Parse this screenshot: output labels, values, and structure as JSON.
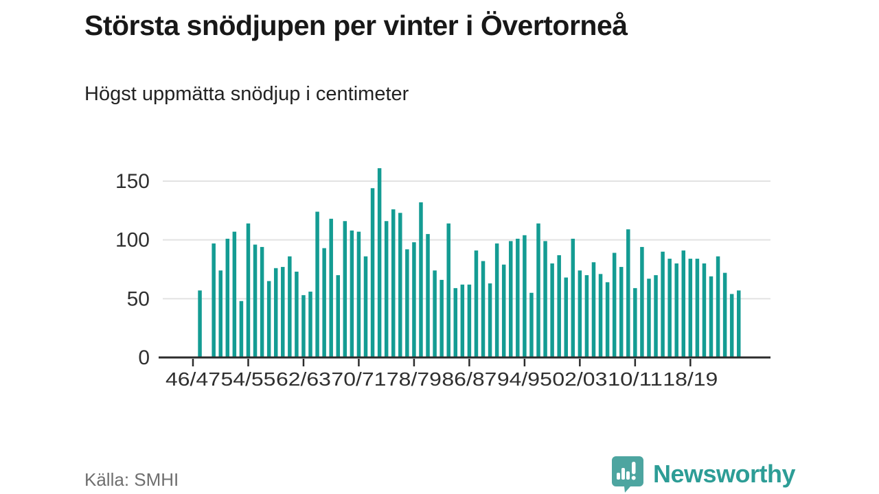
{
  "header": {
    "title": "Största snödjupen per vinter i Övertorneå",
    "subtitle": "Högst uppmätta snödjup i centimeter"
  },
  "footer": {
    "source_label": "Källa: SMHI",
    "brand_name": "Newsworthy",
    "brand_icon": "newsworthy-speech-bubble-chart-icon"
  },
  "colors": {
    "bar": "#149c93",
    "axis": "#2b2b2b",
    "grid": "#e2e2e2",
    "axis_label": "#2f2f2f",
    "title": "#181818",
    "subtitle": "#222222",
    "source_text": "#6f6f6f",
    "brand_teal": "#2d9d96",
    "brand_icon_teal": "#4da5a0",
    "background": "#ffffff"
  },
  "chart_data": {
    "type": "bar",
    "title": "Största snödjupen per vinter i Övertorneå",
    "subtitle": "Högst uppmätta snödjup i centimeter",
    "unit": "cm",
    "ylabel": "",
    "xlabel": "",
    "ylim": [
      0,
      165
    ],
    "yticks": [
      0,
      50,
      100,
      150
    ],
    "grid": true,
    "legend": "none",
    "x_tick_interval": 8,
    "x_tick_labels": [
      "46/47",
      "54/55",
      "62/63",
      "70/71",
      "78/79",
      "86/87",
      "94/95",
      "02/03",
      "10/11",
      "18/19"
    ],
    "missing_categories": [
      "46/47",
      "48/49"
    ],
    "categories": [
      "46/47",
      "47/48",
      "48/49",
      "49/50",
      "50/51",
      "51/52",
      "52/53",
      "53/54",
      "54/55",
      "55/56",
      "56/57",
      "57/58",
      "58/59",
      "59/60",
      "60/61",
      "61/62",
      "62/63",
      "63/64",
      "64/65",
      "65/66",
      "66/67",
      "67/68",
      "68/69",
      "69/70",
      "70/71",
      "71/72",
      "72/73",
      "73/74",
      "74/75",
      "75/76",
      "76/77",
      "77/78",
      "78/79",
      "79/80",
      "80/81",
      "81/82",
      "82/83",
      "83/84",
      "84/85",
      "85/86",
      "86/87",
      "87/88",
      "88/89",
      "89/90",
      "90/91",
      "91/92",
      "92/93",
      "93/94",
      "94/95",
      "95/96",
      "96/97",
      "97/98",
      "98/99",
      "99/00",
      "00/01",
      "01/02",
      "02/03",
      "03/04",
      "04/05",
      "05/06",
      "06/07",
      "07/08",
      "08/09",
      "09/10",
      "10/11",
      "11/12",
      "12/13",
      "13/14",
      "14/15",
      "15/16",
      "16/17",
      "17/18",
      "18/19",
      "19/20",
      "20/21",
      "21/22",
      "22/23",
      "23/24",
      "24/25",
      "25/26"
    ],
    "values": [
      null,
      57,
      null,
      97,
      74,
      101,
      107,
      48,
      114,
      96,
      94,
      65,
      76,
      77,
      86,
      73,
      53,
      56,
      124,
      93,
      118,
      70,
      116,
      108,
      107,
      86,
      144,
      161,
      116,
      126,
      123,
      92,
      98,
      132,
      105,
      74,
      66,
      114,
      59,
      62,
      62,
      91,
      82,
      63,
      97,
      79,
      99,
      101,
      104,
      55,
      114,
      99,
      80,
      87,
      68,
      101,
      74,
      70,
      81,
      71,
      64,
      89,
      77,
      109,
      59,
      94,
      67,
      70,
      90,
      84,
      80,
      91,
      84,
      84,
      80,
      69,
      86,
      72,
      54,
      57
    ]
  }
}
